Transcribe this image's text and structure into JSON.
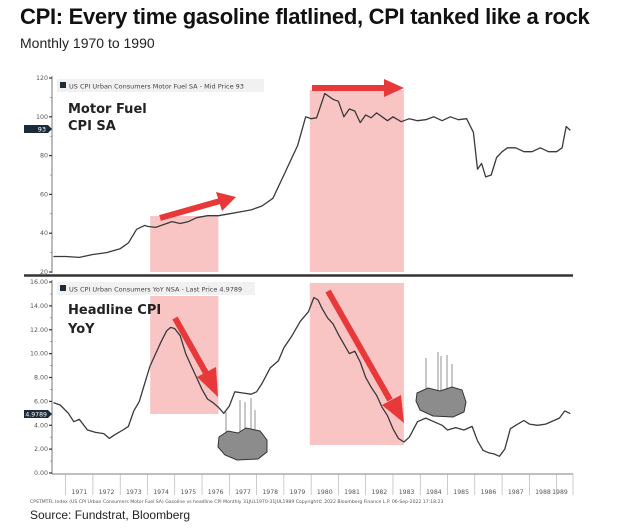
{
  "header": {
    "title": "CPI: Every time gasoline flatlined, CPI tanked like a rock",
    "subtitle": "Monthly 1970 to 1990"
  },
  "footer": {
    "source": "Source: Fundstrat, Bloomberg",
    "bloomberg_footer": "CPSTMTFL Index (US CPI Urban Consumers Motor Fuel SA) Gasoline vs headline CPI  Monthly 31JUL1970-31JUL1989   Copyright© 2022 Bloomberg Finance L.P.   06-Sep-2022 17:18:23"
  },
  "colors": {
    "line": "#3a3a3a",
    "highlight": "#f9c4c4",
    "arrow": "#e8393a",
    "label_bg": "#1c2b3a",
    "divider": "#333333",
    "rock": "#8c8c8c"
  },
  "chart_data": [
    {
      "type": "line",
      "panel": "top",
      "title": "Motor Fuel CPI SA",
      "title_lines": [
        "Motor Fuel",
        "CPI SA"
      ],
      "legend": "US CPI Urban Consumers Motor Fuel SA - Mid Price 93",
      "legend_placement": "top-left",
      "last_value_label": "93",
      "last_value": 93,
      "ylim": [
        20,
        120
      ],
      "yticks": [
        20,
        40,
        60,
        80,
        100,
        120
      ],
      "ytick_labels": [
        "20",
        "40",
        "60",
        "80",
        "100",
        "120"
      ],
      "xlim": [
        1970.5,
        1989.6
      ],
      "series": [
        {
          "name": "US CPI Urban Consumers Motor Fuel SA",
          "x": [
            1970.55,
            1971.0,
            1971.5,
            1972.0,
            1972.5,
            1973.0,
            1973.3,
            1973.6,
            1973.9,
            1974.0,
            1974.3,
            1974.6,
            1974.9,
            1975.2,
            1975.5,
            1975.8,
            1976.2,
            1976.6,
            1977.0,
            1977.4,
            1977.8,
            1978.2,
            1978.6,
            1979.0,
            1979.3,
            1979.5,
            1979.8,
            1980.0,
            1980.2,
            1980.5,
            1980.8,
            1981.0,
            1981.2,
            1981.4,
            1981.6,
            1981.8,
            1982.0,
            1982.2,
            1982.4,
            1982.6,
            1982.8,
            1983.0,
            1983.3,
            1983.6,
            1983.9,
            1984.2,
            1984.5,
            1984.8,
            1985.1,
            1985.4,
            1985.7,
            1985.95,
            1986.1,
            1986.25,
            1986.4,
            1986.6,
            1986.8,
            1987.0,
            1987.2,
            1987.5,
            1987.8,
            1988.1,
            1988.4,
            1988.7,
            1989.0,
            1989.2,
            1989.35,
            1989.5
          ],
          "values": [
            28,
            28,
            27.5,
            29,
            30,
            32,
            35,
            42,
            44,
            43.5,
            43,
            44.5,
            46,
            45,
            46,
            48,
            49,
            49,
            50,
            51,
            52,
            54,
            58,
            70,
            79,
            85,
            100,
            99,
            99.5,
            112,
            109,
            108,
            100,
            104,
            103,
            97,
            101,
            99.5,
            102,
            100,
            98,
            100,
            97.5,
            99,
            98,
            98.5,
            100,
            98,
            100,
            98.5,
            99,
            92,
            73,
            76,
            69,
            70,
            79,
            82,
            84,
            84,
            82,
            82,
            84,
            82,
            82,
            84,
            95,
            93
          ]
        }
      ],
      "highlight_ranges": [
        [
          1974.1,
          1976.6
        ],
        [
          1979.95,
          1983.4
        ]
      ],
      "annotations": [
        "up-right arrow over 1974-1977 (flat gasoline)",
        "right arrow over 1980-1983 (flat gasoline)"
      ]
    },
    {
      "type": "line",
      "panel": "bottom",
      "title": "Headline CPI YoY",
      "title_lines": [
        "Headline CPI",
        "YoY"
      ],
      "legend": "US CPI Urban Consumers YoY NSA - Last Price 4.9789",
      "legend_placement": "top-left",
      "last_value_label": "4.9789",
      "last_value": 4.9789,
      "ylim": [
        0,
        16
      ],
      "yticks": [
        0,
        2,
        4,
        6,
        8,
        10,
        12,
        14,
        16
      ],
      "ytick_labels": [
        "0.00",
        "2.00",
        "4.00",
        "6.00",
        "8.00",
        "10.00",
        "12.00",
        "14.00",
        "16.00"
      ],
      "xlim": [
        1970.5,
        1989.6
      ],
      "xticks": [
        1971,
        1972,
        1973,
        1974,
        1975,
        1976,
        1977,
        1978,
        1979,
        1980,
        1981,
        1982,
        1983,
        1984,
        1985,
        1986,
        1987,
        1988,
        1989
      ],
      "series": [
        {
          "name": "US CPI Urban Consumers YoY NSA",
          "x": [
            1970.55,
            1970.8,
            1971.1,
            1971.3,
            1971.5,
            1971.8,
            1972.1,
            1972.4,
            1972.6,
            1972.8,
            1973.1,
            1973.3,
            1973.5,
            1973.7,
            1973.9,
            1974.1,
            1974.3,
            1974.5,
            1974.7,
            1974.85,
            1975.0,
            1975.2,
            1975.4,
            1975.6,
            1975.8,
            1976.0,
            1976.2,
            1976.4,
            1976.6,
            1976.8,
            1977.0,
            1977.2,
            1977.5,
            1977.8,
            1978.0,
            1978.2,
            1978.5,
            1978.8,
            1979.0,
            1979.3,
            1979.6,
            1979.9,
            1980.1,
            1980.25,
            1980.4,
            1980.6,
            1980.8,
            1981.0,
            1981.2,
            1981.4,
            1981.6,
            1981.8,
            1982.0,
            1982.2,
            1982.4,
            1982.6,
            1982.8,
            1983.0,
            1983.2,
            1983.4,
            1983.6,
            1983.9,
            1984.2,
            1984.5,
            1984.8,
            1985.0,
            1985.3,
            1985.6,
            1985.9,
            1986.1,
            1986.3,
            1986.5,
            1986.7,
            1986.9,
            1987.1,
            1987.3,
            1987.5,
            1987.8,
            1988.0,
            1988.3,
            1988.6,
            1988.9,
            1989.1,
            1989.3,
            1989.5
          ],
          "values": [
            5.9,
            5.7,
            5.0,
            4.3,
            4.5,
            3.6,
            3.4,
            3.3,
            2.9,
            3.2,
            3.6,
            3.9,
            5.2,
            6.0,
            7.5,
            9.0,
            10.0,
            11.0,
            11.9,
            12.2,
            12.1,
            11.5,
            10.0,
            9.0,
            8.0,
            7.0,
            6.2,
            5.9,
            5.5,
            5.0,
            5.6,
            6.8,
            6.7,
            6.6,
            6.8,
            7.5,
            8.8,
            9.4,
            10.5,
            11.5,
            12.7,
            13.5,
            14.7,
            14.5,
            13.8,
            13.0,
            12.5,
            11.6,
            10.8,
            10.0,
            10.2,
            9.3,
            8.0,
            7.2,
            6.5,
            5.5,
            4.8,
            3.7,
            2.9,
            2.6,
            3.0,
            4.3,
            4.6,
            4.3,
            4.0,
            3.6,
            3.8,
            3.6,
            3.9,
            2.7,
            1.9,
            1.7,
            1.6,
            1.4,
            2.0,
            3.7,
            4.0,
            4.4,
            4.1,
            4.0,
            4.1,
            4.4,
            4.6,
            5.2,
            4.98
          ]
        }
      ],
      "highlight_ranges": [
        [
          1974.1,
          1976.6
        ],
        [
          1979.95,
          1983.4
        ]
      ],
      "annotations": [
        "down arrow 1975-1976 (CPI falling)",
        "down arrow 1980-1983 (CPI falling)",
        "falling rock cartoon after 1976",
        "falling rock cartoon after 1983"
      ]
    }
  ]
}
